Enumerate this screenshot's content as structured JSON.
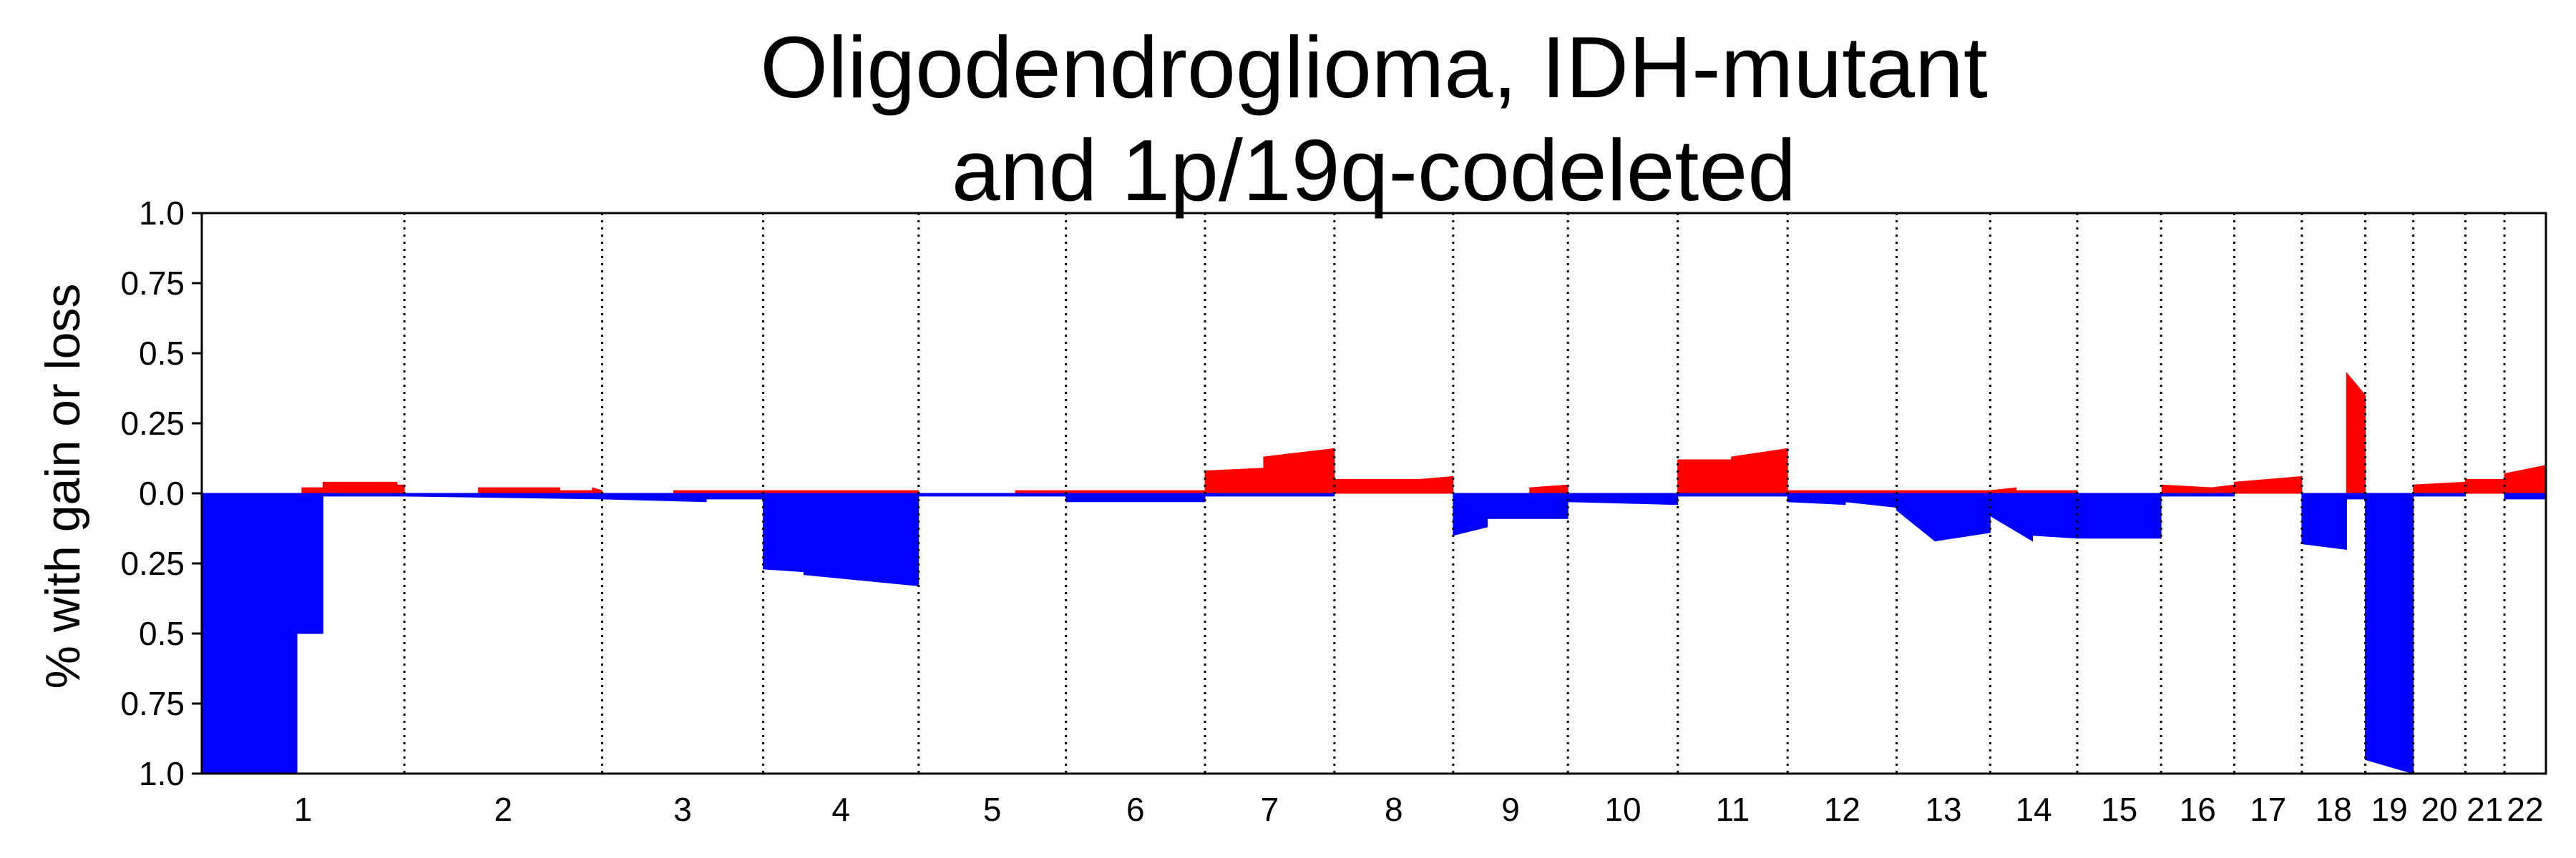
{
  "chart_data": {
    "type": "area",
    "title": "Oligodendroglioma, IDH-mutant\nand 1p/19q-codeleted",
    "ylabel": "% with gain or loss",
    "xlabel": "",
    "ylim": [
      -1.0,
      1.0
    ],
    "y_ticks": [
      {
        "value": 1.0,
        "label": "1.0"
      },
      {
        "value": 0.75,
        "label": "0.75"
      },
      {
        "value": 0.5,
        "label": "0.5"
      },
      {
        "value": 0.25,
        "label": "0.25"
      },
      {
        "value": 0.0,
        "label": "0.0"
      },
      {
        "value": -0.25,
        "label": "0.25"
      },
      {
        "value": -0.5,
        "label": "0.5"
      },
      {
        "value": -0.75,
        "label": "0.75"
      },
      {
        "value": -1.0,
        "label": "1.0"
      }
    ],
    "colors": {
      "gain": "#ff0000",
      "loss": "#0000ff"
    },
    "chromosomes": [
      {
        "label": "1",
        "start": 0,
        "end": 249
      },
      {
        "label": "2",
        "start": 249,
        "end": 492
      },
      {
        "label": "3",
        "start": 492,
        "end": 690
      },
      {
        "label": "4",
        "start": 690,
        "end": 881
      },
      {
        "label": "5",
        "start": 881,
        "end": 1062
      },
      {
        "label": "6",
        "start": 1062,
        "end": 1233
      },
      {
        "label": "7",
        "start": 1233,
        "end": 1392
      },
      {
        "label": "8",
        "start": 1392,
        "end": 1538
      },
      {
        "label": "9",
        "start": 1538,
        "end": 1679
      },
      {
        "label": "10",
        "start": 1679,
        "end": 1814
      },
      {
        "label": "11",
        "start": 1814,
        "end": 1949
      },
      {
        "label": "12",
        "start": 1949,
        "end": 2083
      },
      {
        "label": "13",
        "start": 2083,
        "end": 2198
      },
      {
        "label": "14",
        "start": 2198,
        "end": 2305
      },
      {
        "label": "15",
        "start": 2305,
        "end": 2408
      },
      {
        "label": "16",
        "start": 2408,
        "end": 2498
      },
      {
        "label": "17",
        "start": 2498,
        "end": 2581
      },
      {
        "label": "18",
        "start": 2581,
        "end": 2659
      },
      {
        "label": "19",
        "start": 2659,
        "end": 2718
      },
      {
        "label": "20",
        "start": 2718,
        "end": 2782
      },
      {
        "label": "21",
        "start": 2782,
        "end": 2830
      },
      {
        "label": "22",
        "start": 2830,
        "end": 2881
      }
    ],
    "series": [
      {
        "name": "gain",
        "segments": [
          [
            123,
            0.02,
            0.02
          ],
          [
            149,
            0.04,
            0.04
          ],
          [
            240,
            0.03,
            0.03
          ],
          [
            340,
            0.02,
            0.02
          ],
          [
            440,
            0.01,
            0.01
          ],
          [
            480,
            0.02,
            0.01
          ],
          [
            580,
            0.01,
            0.01
          ],
          [
            690,
            0.01,
            0.01
          ],
          [
            1000,
            0.01,
            0.01
          ],
          [
            1062,
            0.01,
            0.01
          ],
          [
            1233,
            0.08,
            0.09
          ],
          [
            1305,
            0.13,
            0.16
          ],
          [
            1392,
            0.05,
            0.05
          ],
          [
            1497,
            0.05,
            0.06
          ],
          [
            1632,
            0.02,
            0.03
          ],
          [
            1814,
            0.12,
            0.12
          ],
          [
            1880,
            0.13,
            0.16
          ],
          [
            1949,
            0.01,
            0.01
          ],
          [
            2083,
            0.01,
            0.01
          ],
          [
            2198,
            0.01,
            0.02
          ],
          [
            2230,
            0.01,
            0.01
          ],
          [
            2409,
            0.03,
            0.02
          ],
          [
            2470,
            0.02,
            0.03
          ],
          [
            2498,
            0.04,
            0.06
          ],
          [
            2636,
            0.43,
            0.35
          ],
          [
            2718,
            0.03,
            0.04
          ],
          [
            2782,
            0.05,
            0.05
          ],
          [
            2830,
            0.07,
            0.1
          ]
        ]
      },
      {
        "name": "loss",
        "segments": [
          [
            0,
            -1.0,
            -1.0
          ],
          [
            117,
            -0.5,
            -0.5
          ],
          [
            149,
            -0.01,
            -0.01
          ],
          [
            249,
            -0.01,
            -0.02
          ],
          [
            492,
            -0.02,
            -0.03
          ],
          [
            620,
            -0.02,
            -0.02
          ],
          [
            690,
            -0.27,
            -0.28
          ],
          [
            740,
            -0.29,
            -0.33
          ],
          [
            881,
            -0.01,
            -0.01
          ],
          [
            1062,
            -0.03,
            -0.03
          ],
          [
            1233,
            -0.01,
            -0.01
          ],
          [
            1538,
            -0.15,
            -0.12
          ],
          [
            1580,
            -0.09,
            -0.09
          ],
          [
            1679,
            -0.03,
            -0.04
          ],
          [
            1814,
            -0.01,
            -0.01
          ],
          [
            1949,
            -0.03,
            -0.04
          ],
          [
            2020,
            -0.03,
            -0.05
          ],
          [
            2083,
            -0.06,
            -0.17
          ],
          [
            2130,
            -0.17,
            -0.14
          ],
          [
            2198,
            -0.08,
            -0.17
          ],
          [
            2250,
            -0.15,
            -0.16
          ],
          [
            2305,
            -0.16,
            -0.16
          ],
          [
            2408,
            -0.01,
            -0.01
          ],
          [
            2581,
            -0.18,
            -0.2
          ],
          [
            2636,
            -0.02,
            -0.02
          ],
          [
            2659,
            -0.95,
            -1.0
          ],
          [
            2718,
            -0.01,
            -0.01
          ],
          [
            2830,
            -0.02,
            -0.02
          ]
        ]
      }
    ],
    "grid": false,
    "legend": "none"
  }
}
